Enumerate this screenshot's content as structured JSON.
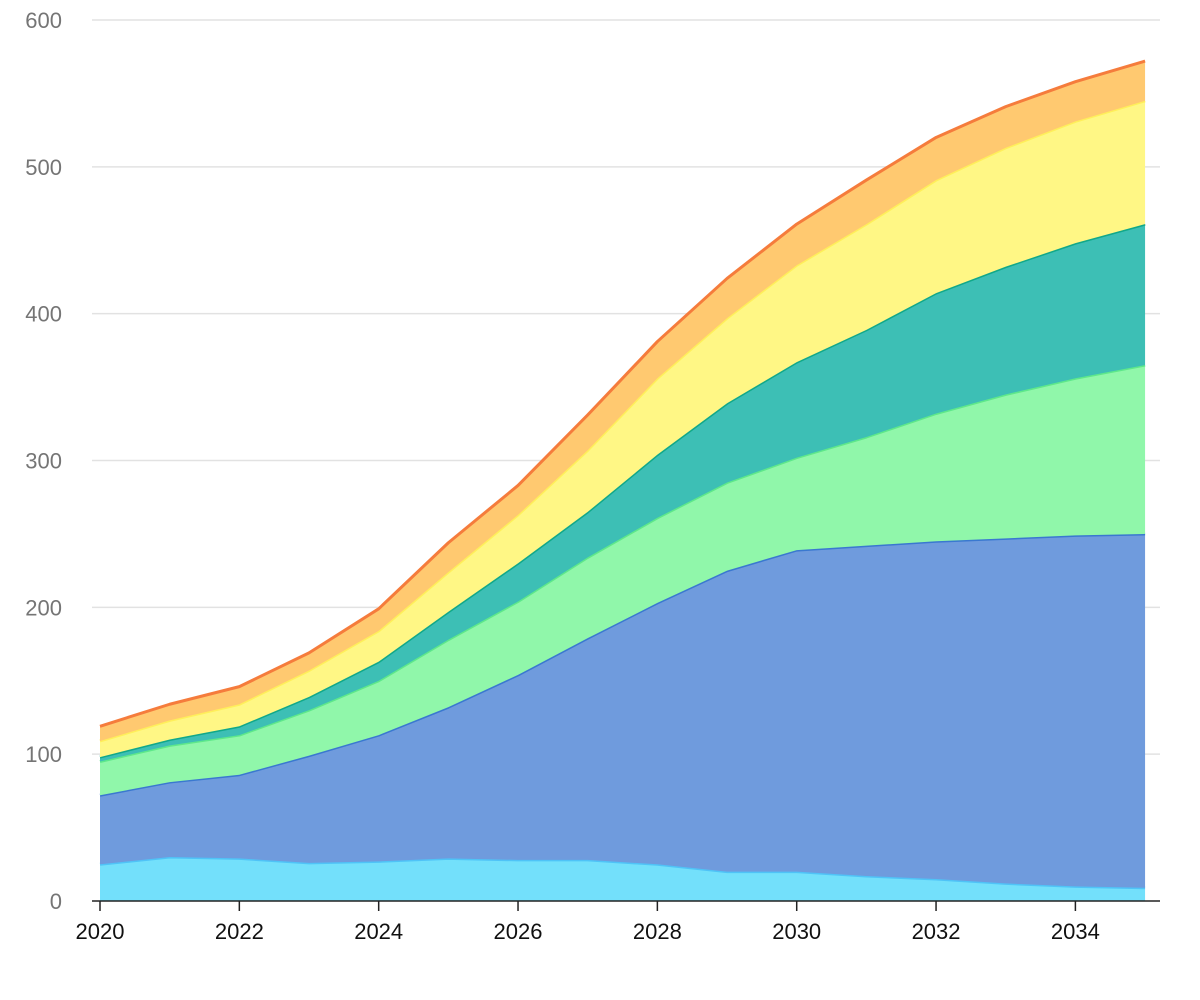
{
  "chart_data": {
    "type": "area",
    "stacked": true,
    "title": "",
    "xlabel": "",
    "ylabel": "",
    "x": [
      2020,
      2021,
      2022,
      2023,
      2024,
      2025,
      2026,
      2027,
      2028,
      2029,
      2030,
      2031,
      2032,
      2033,
      2034,
      2035
    ],
    "xlim": [
      2020,
      2035.2
    ],
    "ylim": [
      0,
      600
    ],
    "x_ticks": [
      "2020",
      "2022",
      "2024",
      "2026",
      "2028",
      "2030",
      "2032",
      "2034"
    ],
    "x_tick_values": [
      2020,
      2022,
      2024,
      2026,
      2028,
      2030,
      2032,
      2034
    ],
    "y_ticks": [
      "0",
      "100",
      "200",
      "300",
      "400",
      "500",
      "600"
    ],
    "y_tick_values": [
      0,
      100,
      200,
      300,
      400,
      500,
      600
    ],
    "grid": "horizontal",
    "legend": "none",
    "series": [
      {
        "color": "#4dd0e1",
        "fill": "#73e0fb",
        "line": "#4fc3f7",
        "values": [
          25,
          30,
          29,
          26,
          27,
          29,
          28,
          28,
          25,
          20,
          20,
          17,
          15,
          12,
          10,
          9
        ]
      },
      {
        "fill": "#6f9bdd",
        "line": "#3a78d0",
        "values": [
          47,
          51,
          57,
          73,
          86,
          103,
          126,
          151,
          178,
          205,
          219,
          225,
          230,
          235,
          239,
          241
        ]
      },
      {
        "fill": "#90f7aa",
        "line": "#5ee88a",
        "values": [
          23,
          25,
          27,
          31,
          37,
          46,
          50,
          55,
          58,
          60,
          63,
          74,
          87,
          98,
          107,
          115
        ]
      },
      {
        "fill": "#3dbfb5",
        "line": "#10a88a",
        "values": [
          3,
          4,
          6,
          9,
          13,
          19,
          26,
          31,
          43,
          54,
          65,
          73,
          82,
          87,
          92,
          96
        ]
      },
      {
        "fill": "#fff785",
        "line": "#ffef5a",
        "values": [
          11,
          13,
          15,
          18,
          21,
          27,
          33,
          42,
          52,
          58,
          66,
          72,
          77,
          81,
          83,
          84
        ]
      },
      {
        "fill": "#ffc970",
        "line": "#f57c3c",
        "values": [
          10,
          11,
          12,
          12,
          15,
          20,
          20,
          24,
          25,
          27,
          28,
          30,
          29,
          28,
          27,
          27
        ]
      }
    ]
  }
}
